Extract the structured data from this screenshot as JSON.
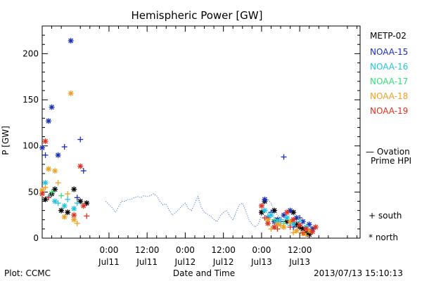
{
  "chart_data": {
    "type": "scatter",
    "title": "Hemispheric Power [GW]",
    "xlabel": "Date and Time",
    "ylabel": "P [GW]",
    "ylim": [
      0,
      230
    ],
    "xlim_hours": [
      -21,
      79
    ],
    "yticks": [
      0,
      50,
      100,
      150,
      200
    ],
    "xticks": [
      {
        "hour": 0,
        "top": "0:00",
        "bottom": "Jul11"
      },
      {
        "hour": 12,
        "top": "12:00",
        "bottom": "Jul11"
      },
      {
        "hour": 24,
        "top": "0:00",
        "bottom": "Jul12"
      },
      {
        "hour": 36,
        "top": "12:00",
        "bottom": "Jul12"
      },
      {
        "hour": 48,
        "top": "0:00",
        "bottom": "Jul13"
      },
      {
        "hour": 60,
        "top": "12:00",
        "bottom": "Jul13"
      }
    ],
    "footer_left": "Plot: CCMC",
    "footer_right": "2013/07/13 15:10:13",
    "legend_title": "METP-02",
    "legend": [
      {
        "name": "NOAA-15",
        "color": "#1a2fb8"
      },
      {
        "name": "NOAA-16",
        "color": "#22c4e0"
      },
      {
        "name": "NOAA-17",
        "color": "#33e07a"
      },
      {
        "name": "NOAA-18",
        "color": "#f0a020"
      },
      {
        "name": "NOAA-19",
        "color": "#e03020"
      }
    ],
    "ovation": {
      "label_line1": "— Ovation",
      "label_line2": "Prime HPI",
      "color": "#2a62c8",
      "points": [
        [
          -1,
          40
        ],
        [
          1,
          33
        ],
        [
          2,
          28
        ],
        [
          3,
          34
        ],
        [
          4,
          40
        ],
        [
          5,
          40
        ],
        [
          6,
          42
        ],
        [
          7,
          42
        ],
        [
          8,
          44
        ],
        [
          9,
          45
        ],
        [
          10,
          44
        ],
        [
          11,
          46
        ],
        [
          12,
          45
        ],
        [
          13,
          46
        ],
        [
          14,
          48
        ],
        [
          15,
          46
        ],
        [
          16,
          40
        ],
        [
          17,
          36
        ],
        [
          18,
          37
        ],
        [
          19,
          30
        ],
        [
          20,
          25
        ],
        [
          21,
          28
        ],
        [
          22,
          31
        ],
        [
          23,
          35
        ],
        [
          24,
          38
        ],
        [
          25,
          32
        ],
        [
          26,
          30
        ],
        [
          27,
          38
        ],
        [
          28,
          45
        ],
        [
          29,
          34
        ],
        [
          30,
          28
        ],
        [
          31,
          26
        ],
        [
          32,
          24
        ],
        [
          33,
          20
        ],
        [
          34,
          18
        ],
        [
          35,
          24
        ],
        [
          36,
          28
        ],
        [
          37,
          30
        ],
        [
          38,
          24
        ],
        [
          39,
          20
        ],
        [
          40,
          28
        ],
        [
          41,
          36
        ],
        [
          42,
          38
        ],
        [
          43,
          30
        ],
        [
          44,
          20
        ],
        [
          45,
          15
        ],
        [
          46,
          12
        ],
        [
          47,
          15
        ],
        [
          48,
          25
        ],
        [
          49,
          40
        ],
        [
          50,
          42
        ],
        [
          51,
          38
        ],
        [
          52,
          30
        ],
        [
          53,
          25
        ],
        [
          54,
          22
        ],
        [
          55,
          20
        ],
        [
          56,
          18
        ],
        [
          57,
          16
        ],
        [
          58,
          14
        ],
        [
          59,
          13
        ],
        [
          60,
          12
        ],
        [
          61,
          10
        ],
        [
          62,
          8
        ],
        [
          63,
          6
        ],
        [
          64,
          5
        ]
      ]
    },
    "series": [
      {
        "name": "METP-02",
        "color": "#000000",
        "symbol": "star",
        "points": [
          [
            -20,
            42
          ],
          [
            -18,
            48
          ],
          [
            -17,
            53
          ],
          [
            -15,
            30
          ],
          [
            -13,
            28
          ],
          [
            -11,
            53
          ],
          [
            -9,
            40
          ],
          [
            -7,
            38
          ],
          [
            48,
            28
          ],
          [
            49,
            40
          ],
          [
            52,
            30
          ],
          [
            53,
            20
          ],
          [
            56,
            18
          ],
          [
            58,
            28
          ],
          [
            59,
            15
          ],
          [
            60,
            12
          ],
          [
            61,
            10
          ],
          [
            62,
            6
          ],
          [
            63,
            4
          ]
        ]
      },
      {
        "name": "NOAA-15",
        "color": "#1a2fb8",
        "symbol": "star",
        "points": [
          [
            -21,
            98
          ],
          [
            -19,
            127
          ],
          [
            -18,
            142
          ],
          [
            -16,
            90
          ],
          [
            -12,
            214
          ],
          [
            49,
            42
          ],
          [
            50,
            22
          ],
          [
            52,
            18
          ],
          [
            53,
            20
          ],
          [
            55,
            25
          ],
          [
            57,
            30
          ],
          [
            59,
            22
          ],
          [
            61,
            18
          ],
          [
            63,
            15
          ],
          [
            64,
            10
          ]
        ]
      },
      {
        "name": "NOAA-15",
        "color": "#1a2fb8",
        "symbol": "plus",
        "points": [
          [
            -20,
            90
          ],
          [
            -14,
            99
          ],
          [
            -9,
            107
          ],
          [
            -8,
            73
          ],
          [
            -10,
            44
          ],
          [
            55,
            88
          ],
          [
            51,
            28
          ],
          [
            54,
            18
          ],
          [
            58,
            12
          ],
          [
            60,
            22
          ]
        ]
      },
      {
        "name": "NOAA-16",
        "color": "#22c4e0",
        "symbol": "star",
        "points": [
          [
            -20,
            60
          ],
          [
            -17,
            40
          ],
          [
            -14,
            35
          ],
          [
            -11,
            32
          ],
          [
            49,
            30
          ],
          [
            51,
            25
          ],
          [
            53,
            18
          ],
          [
            56,
            22
          ],
          [
            58,
            16
          ],
          [
            62,
            12
          ]
        ]
      },
      {
        "name": "NOAA-16",
        "color": "#22c4e0",
        "symbol": "plus",
        "points": [
          [
            -19,
            45
          ],
          [
            -16,
            38
          ],
          [
            -13,
            42
          ],
          [
            -10,
            38
          ],
          [
            50,
            24
          ],
          [
            54,
            20
          ],
          [
            57,
            14
          ],
          [
            60,
            18
          ]
        ]
      },
      {
        "name": "NOAA-17",
        "color": "#33e07a",
        "symbol": "plus",
        "points": [
          [
            -18,
            50
          ],
          [
            -15,
            46
          ],
          [
            52,
            20
          ],
          [
            55,
            16
          ]
        ]
      },
      {
        "name": "NOAA-18",
        "color": "#f0a020",
        "symbol": "star",
        "points": [
          [
            -21,
            52
          ],
          [
            -19,
            75
          ],
          [
            -17,
            73
          ],
          [
            -12,
            157
          ],
          [
            -14,
            23
          ],
          [
            -11,
            20
          ],
          [
            50,
            20
          ],
          [
            53,
            15
          ],
          [
            55,
            12
          ],
          [
            57,
            18
          ],
          [
            59,
            8
          ],
          [
            61,
            5
          ],
          [
            63,
            8
          ]
        ]
      },
      {
        "name": "NOAA-18",
        "color": "#f0a020",
        "symbol": "plus",
        "points": [
          [
            -20,
            55
          ],
          [
            -16,
            60
          ],
          [
            -13,
            48
          ],
          [
            -10,
            16
          ],
          [
            51,
            10
          ],
          [
            54,
            14
          ],
          [
            58,
            6
          ],
          [
            62,
            3
          ]
        ]
      },
      {
        "name": "NOAA-19",
        "color": "#e03020",
        "symbol": "star",
        "points": [
          [
            -21,
            48
          ],
          [
            -20,
            105
          ],
          [
            -9,
            78
          ],
          [
            -8,
            35
          ],
          [
            -11,
            25
          ],
          [
            48,
            35
          ],
          [
            50,
            16
          ],
          [
            52,
            12
          ],
          [
            56,
            28
          ],
          [
            58,
            20
          ],
          [
            60,
            14
          ],
          [
            62,
            10
          ],
          [
            64,
            7
          ],
          [
            65,
            12
          ]
        ]
      },
      {
        "name": "NOAA-19",
        "color": "#e03020",
        "symbol": "plus",
        "points": [
          [
            -19,
            44
          ],
          [
            -7,
            24
          ],
          [
            49,
            22
          ],
          [
            53,
            10
          ],
          [
            57,
            12
          ],
          [
            61,
            6
          ]
        ]
      }
    ],
    "symbol_key": [
      {
        "symbol": "plus",
        "label": "+ south"
      },
      {
        "symbol": "star",
        "label": "* north"
      }
    ]
  }
}
